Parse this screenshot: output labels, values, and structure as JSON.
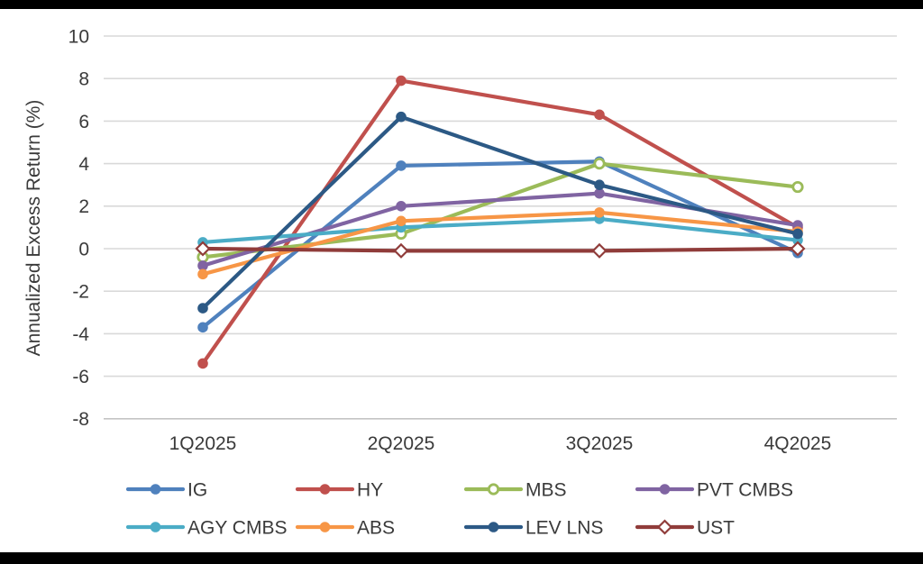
{
  "chart_data": {
    "type": "line",
    "title": "",
    "ylabel": "Annualized Excess Return (%)",
    "xlabel": "",
    "categories": [
      "1Q2025",
      "2Q2025",
      "3Q2025",
      "4Q2025"
    ],
    "ylim": [
      -8,
      10
    ],
    "yticks": [
      10,
      8,
      6,
      4,
      2,
      0,
      -2,
      -4,
      -6,
      -8
    ],
    "grid": "horizontal",
    "legend_position": "bottom",
    "series": [
      {
        "name": "IG",
        "color": "#4F81BD",
        "marker": "circle",
        "values": [
          -3.7,
          3.9,
          4.1,
          -0.2
        ]
      },
      {
        "name": "HY",
        "color": "#C0504D",
        "marker": "circle",
        "values": [
          -5.4,
          7.9,
          6.3,
          1.0
        ]
      },
      {
        "name": "MBS",
        "color": "#9BBB59",
        "marker": "open-circle",
        "values": [
          -0.4,
          0.7,
          4.0,
          2.9
        ]
      },
      {
        "name": "PVT CMBS",
        "color": "#8064A2",
        "marker": "circle",
        "values": [
          -0.8,
          2.0,
          2.6,
          1.1
        ]
      },
      {
        "name": "AGY CMBS",
        "color": "#4BACC6",
        "marker": "circle",
        "values": [
          0.3,
          1.0,
          1.4,
          0.4
        ]
      },
      {
        "name": "ABS",
        "color": "#F79646",
        "marker": "circle",
        "values": [
          -1.2,
          1.3,
          1.7,
          0.8
        ]
      },
      {
        "name": "LEV LNS",
        "color": "#2C5985",
        "marker": "circle",
        "values": [
          -2.8,
          6.2,
          3.0,
          0.7
        ]
      },
      {
        "name": "UST",
        "color": "#903C3A",
        "marker": "open-diamond",
        "values": [
          0.0,
          -0.1,
          -0.1,
          0.0
        ]
      }
    ]
  },
  "colors": {
    "grid": "#D9D9D9",
    "axis_line": "#C4C4C4",
    "axis_text": "#3A3A3A",
    "frame_bars": "#000000",
    "background": "#FFFFFF"
  }
}
